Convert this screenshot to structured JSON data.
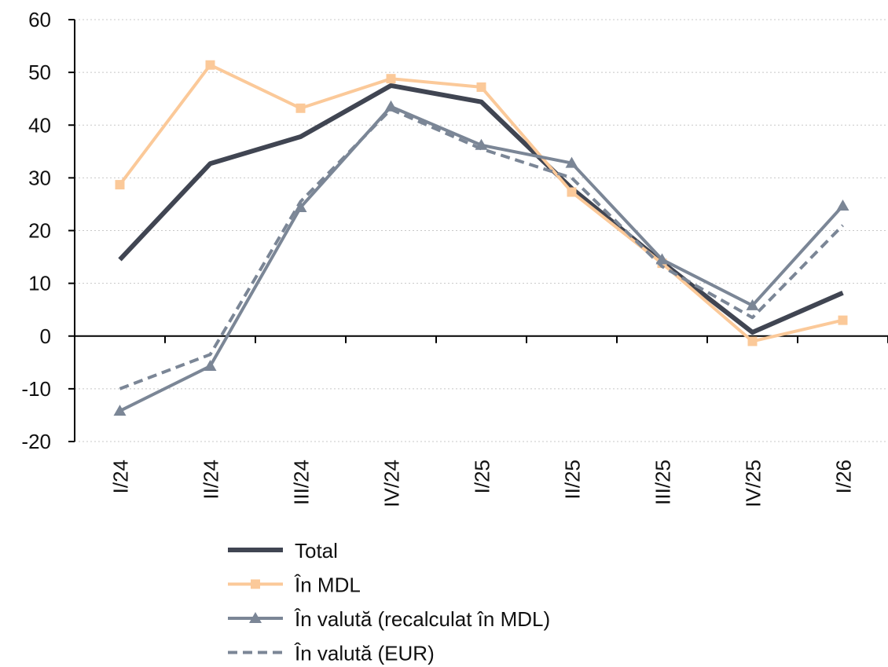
{
  "chart_data": {
    "type": "line",
    "categories": [
      "I/24",
      "II/24",
      "III/24",
      "IV/24",
      "I/25",
      "II/25",
      "III/25",
      "IV/25",
      "I/26"
    ],
    "series": [
      {
        "name": "Total",
        "color": "#404552",
        "width": 6,
        "dashed": false,
        "marker": null,
        "values": [
          14.5,
          32.7,
          37.8,
          47.5,
          44.4,
          28.0,
          14.0,
          0.7,
          8.2
        ]
      },
      {
        "name": "În MDL",
        "color": "#fbc999",
        "width": 4,
        "dashed": false,
        "marker": "square",
        "values": [
          28.7,
          51.4,
          43.2,
          48.8,
          47.2,
          27.3,
          13.8,
          -1.0,
          3.0
        ]
      },
      {
        "name": "În valută (recalculat în MDL)",
        "color": "#7b8696",
        "width": 4,
        "dashed": false,
        "marker": "triangle",
        "values": [
          -14.2,
          -5.7,
          24.4,
          43.5,
          36.2,
          32.8,
          14.5,
          5.8,
          24.7
        ]
      },
      {
        "name": "În valută (EUR)",
        "color": "#7b8696",
        "width": 4,
        "dashed": true,
        "marker": null,
        "values": [
          -10.0,
          -3.5,
          25.5,
          43.0,
          35.5,
          30.0,
          13.2,
          3.5,
          21.0
        ]
      }
    ],
    "ylim": [
      -20,
      60
    ],
    "yticks": [
      -20,
      -10,
      0,
      10,
      20,
      30,
      40,
      50,
      60
    ],
    "grid": true,
    "legend": "bottom"
  }
}
